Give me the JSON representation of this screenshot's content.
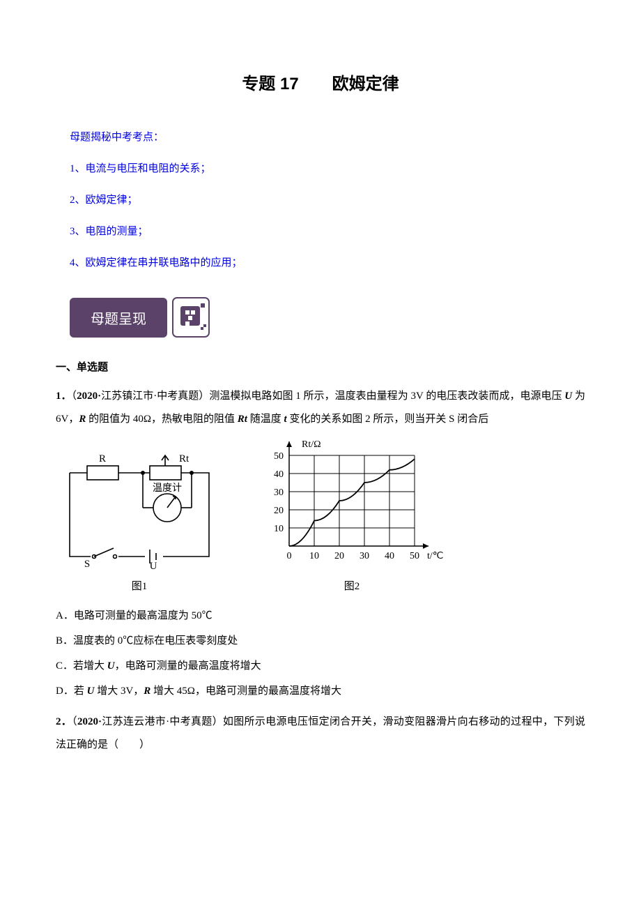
{
  "title": "专题 17　　欧姆定律",
  "outline": {
    "header": "母题揭秘中考考点：",
    "items": [
      "1、电流与电压和电阻的关系；",
      "2、欧姆定律；",
      "3、电阻的测量；",
      "4、欧姆定律在串并联电路中的应用；"
    ]
  },
  "badge": {
    "label": "母题呈现",
    "bg_color": "#5a4269",
    "text_color": "#ffffff"
  },
  "section1": {
    "header": "一、单选题"
  },
  "q1": {
    "number": "1．",
    "source_prefix": "（",
    "source_bold": "2020·",
    "source_rest": "江苏镇江市·中考真题）测温模拟电路如图 1 所示，温度表由量程为 3V 的电压表改装而成，电源电压 ",
    "u_label": "U ",
    "u_value": "为 6V，",
    "r_label": "R ",
    "r_value": "的阻值为 40Ω，热敏电阻的阻值 ",
    "rt_label": "Rt ",
    "rt_rest": "随温度 ",
    "t_label": "t ",
    "t_rest": "变化的关系如图 2 所示，则当开关 S 闭合后",
    "fig1_caption": "图1",
    "fig2_caption": "图2",
    "circuit": {
      "r_box_label": "R",
      "rt_box_label": "Rt",
      "meter_label": "温度计",
      "switch_label": "S",
      "battery_label": "U"
    },
    "graph": {
      "y_axis_label": "Rt/Ω",
      "x_axis_label": "t/℃",
      "y_ticks": [
        10,
        20,
        30,
        40,
        50
      ],
      "x_ticks": [
        0,
        10,
        20,
        30,
        40,
        50
      ],
      "curve_points": [
        [
          0,
          0
        ],
        [
          10,
          14
        ],
        [
          20,
          25
        ],
        [
          30,
          35
        ],
        [
          40,
          42
        ],
        [
          50,
          48
        ]
      ],
      "grid_color": "#000000",
      "bg_color": "#ffffff",
      "font_size": 14
    },
    "options": {
      "a": "A．电路可测量的最高温度为 50℃",
      "b": "B．温度表的 0℃应标在电压表零刻度处",
      "c_prefix": "C．若增大 ",
      "c_u": "U",
      "c_rest": "，电路可测量的最高温度将增大",
      "d_prefix": "D．若 ",
      "d_u": "U ",
      "d_mid": "增大 3V，",
      "d_r": "R ",
      "d_rest": "增大 45Ω，电路可测量的最高温度将增大"
    }
  },
  "q2": {
    "number": "2．",
    "source_prefix": "（",
    "source_bold": "2020·",
    "source_rest": "江苏连云港市·中考真题）如图所示电源电压恒定闭合开关，滑动变阻器滑片向右移动的过程中，下列说法正确的是（　　）"
  }
}
